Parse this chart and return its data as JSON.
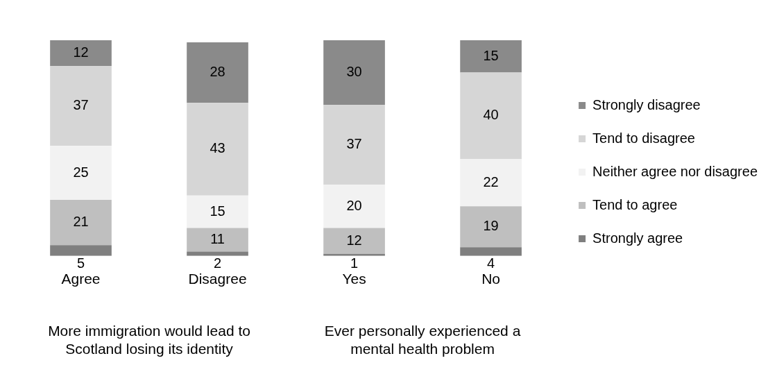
{
  "chart_data": {
    "type": "bar",
    "stacked": true,
    "categories": [
      "Agree",
      "Disagree",
      "Yes",
      "No"
    ],
    "series": [
      {
        "name": "Strongly agree",
        "color": "#7f7f7f",
        "values": [
          5,
          2,
          1,
          4
        ]
      },
      {
        "name": "Tend to agree",
        "color": "#bfbfbf",
        "values": [
          21,
          11,
          12,
          19
        ]
      },
      {
        "name": "Neither agree nor disagree",
        "color": "#f2f2f2",
        "values": [
          25,
          15,
          20,
          22
        ]
      },
      {
        "name": "Tend to disagree",
        "color": "#d6d6d6",
        "values": [
          37,
          43,
          37,
          40
        ]
      },
      {
        "name": "Strongly disagree",
        "color": "#8a8a8a",
        "values": [
          12,
          28,
          30,
          15
        ]
      }
    ],
    "ylim": [
      0,
      100
    ],
    "data_labels": true,
    "legend": "right",
    "grid": false,
    "tick_labels": "x",
    "annotations": [
      "More immigration would lead to Scotland losing its identity",
      "Ever personally experienced a mental health problem"
    ]
  }
}
